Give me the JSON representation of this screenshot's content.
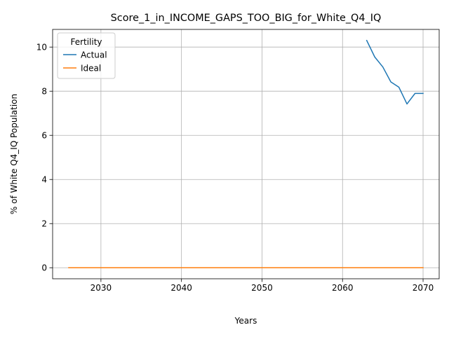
{
  "chart_data": {
    "type": "line",
    "title": "Score_1_in_INCOME_GAPS_TOO_BIG_for_White_Q4_IQ",
    "xlabel": "Years",
    "ylabel": "% of White Q4_IQ Population",
    "xlim": [
      2024,
      2072
    ],
    "ylim": [
      -0.5,
      10.8
    ],
    "xticks": [
      2030,
      2040,
      2050,
      2060,
      2070
    ],
    "yticks": [
      0,
      2,
      4,
      6,
      8,
      10
    ],
    "grid": true,
    "legend": {
      "title": "Fertility",
      "placement": "top-left"
    },
    "series": [
      {
        "name": "Actual",
        "color": "#1f77b4",
        "x": [
          2063,
          2064,
          2065,
          2066,
          2067,
          2068,
          2069,
          2070
        ],
        "y": [
          10.3,
          9.55,
          9.1,
          8.42,
          8.18,
          7.42,
          7.9,
          7.9
        ]
      },
      {
        "name": "Ideal",
        "color": "#ff7f0e",
        "x": [
          2026,
          2070
        ],
        "y": [
          0,
          0
        ]
      }
    ]
  }
}
